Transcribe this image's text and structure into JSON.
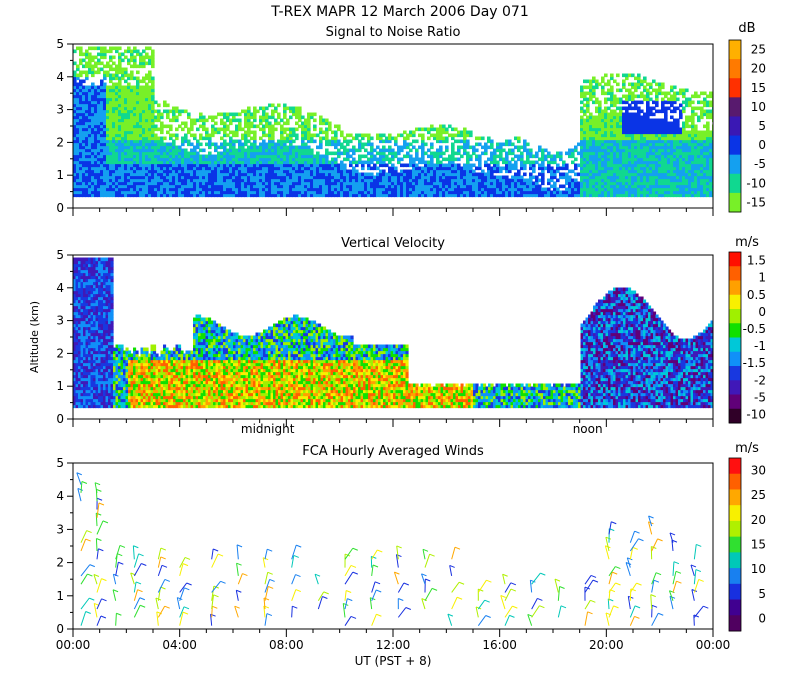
{
  "title": "T-REX   MAPR 12 March 2006 Day 071",
  "colors": {
    "background": "#ffffff"
  },
  "chart_data": [
    {
      "type": "heatmap",
      "title": "Signal to Noise Ratio",
      "ylabel": "",
      "ylim": [
        0,
        5
      ],
      "y_ticks": [
        "0",
        "1",
        "2",
        "3",
        "4",
        "5"
      ],
      "xlim": [
        0,
        24
      ],
      "unit": "dB",
      "colorbar": {
        "labels": [
          "25",
          "20",
          "15",
          "10",
          "5",
          "0",
          "-5",
          "-10",
          "-15"
        ],
        "colors": [
          "#ffb000",
          "#ff7a00",
          "#ff3000",
          "#581a6e",
          "#3a18b4",
          "#0a34e6",
          "#14a0f0",
          "#10d890",
          "#78f028"
        ]
      }
    },
    {
      "type": "heatmap",
      "title": "Vertical Velocity",
      "ylabel": "Altitude (km)",
      "ylim": [
        0,
        5
      ],
      "y_ticks": [
        "0",
        "1",
        "2",
        "3",
        "4",
        "5"
      ],
      "xlim": [
        0,
        24
      ],
      "unit": "m/s",
      "x_annotations": [
        {
          "label": "midnight",
          "x": 7.3
        },
        {
          "label": "noon",
          "x": 19.3
        }
      ],
      "colorbar": {
        "labels": [
          "1.5",
          "1",
          "0.5",
          "0",
          "-0.5",
          "-1",
          "-1.5",
          "-2",
          "-5",
          "-10"
        ],
        "colors": [
          "#ff1000",
          "#ff6000",
          "#ffa000",
          "#f8f000",
          "#a0f000",
          "#10e000",
          "#00c8d8",
          "#1090f8",
          "#1838e0",
          "#4018b8",
          "#600078",
          "#300028"
        ]
      }
    },
    {
      "type": "scatter",
      "title": "FCA Hourly Averaged Winds",
      "xlabel": "UT  (PST + 8)",
      "ylim": [
        0,
        5
      ],
      "y_ticks": [
        "0",
        "1",
        "2",
        "3",
        "4",
        "5"
      ],
      "xlim": [
        0,
        24
      ],
      "x_ticks": [
        "00:00",
        "04:00",
        "08:00",
        "12:00",
        "16:00",
        "20:00",
        "00:00"
      ],
      "unit": "m/s",
      "colorbar": {
        "labels": [
          "30",
          "25",
          "20",
          "15",
          "10",
          "5",
          "0"
        ],
        "colors": [
          "#ff1010",
          "#ff6000",
          "#ffa800",
          "#f8f000",
          "#b0f000",
          "#30e030",
          "#00c8b8",
          "#1880f0",
          "#1830e0",
          "#400090",
          "#500060"
        ]
      },
      "profiles_hours": [
        0.3,
        0.9,
        1.6,
        2.3,
        3.2,
        4.0,
        5.2,
        6.2,
        7.2,
        8.2,
        9.2,
        10.2,
        11.2,
        12.2,
        13.2,
        14.2,
        15.2,
        16.2,
        17.2,
        18.2,
        19.2,
        20.1,
        20.9,
        21.7,
        22.5,
        23.3
      ]
    }
  ]
}
